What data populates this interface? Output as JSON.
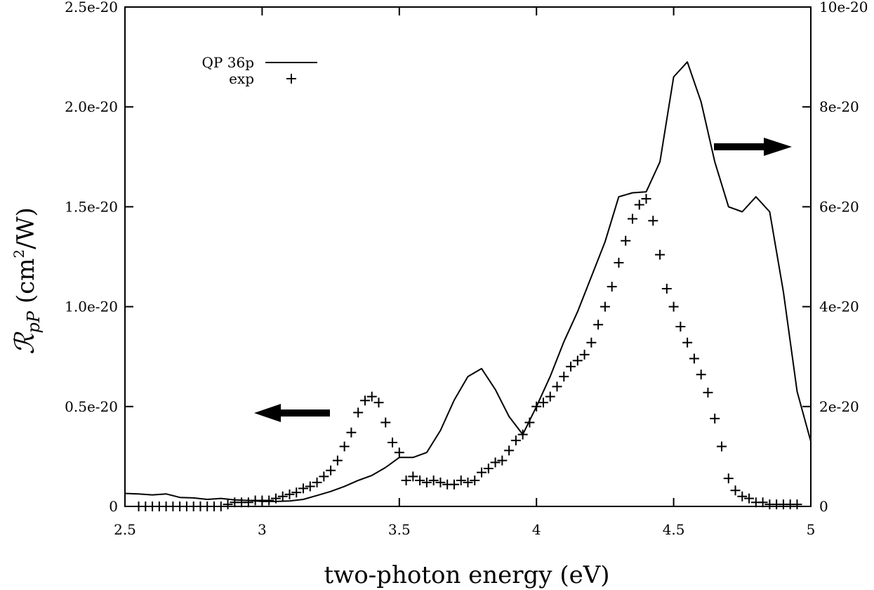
{
  "chart_data": {
    "type": "line",
    "xlabel": "two-photon energy (eV)",
    "ylabel": "ℛ",
    "ylabel_sub": "pP",
    "ylabel_unit_open": " (cm",
    "ylabel_unit_sup": "2",
    "ylabel_unit_close": "/W)",
    "xlim": [
      2.5,
      5.0
    ],
    "ylim_left": [
      0,
      2.5e-20
    ],
    "ylim_right": [
      0,
      1e-19
    ],
    "x_ticks": [
      2.5,
      3.0,
      3.5,
      4.0,
      4.5,
      5.0
    ],
    "x_tick_labels": [
      "2.5",
      "3",
      "3.5",
      "4",
      "4.5",
      "5"
    ],
    "y_left_ticks": [
      0,
      5e-21,
      1e-20,
      1.5e-20,
      2e-20,
      2.5e-20
    ],
    "y_left_tick_labels": [
      "0",
      "0.5e-20",
      "1.0e-20",
      "1.5e-20",
      "2.0e-20",
      "2.5e-20"
    ],
    "y_right_ticks": [
      0,
      2e-20,
      4e-20,
      6e-20,
      8e-20,
      1e-19
    ],
    "y_right_tick_labels": [
      "0",
      "2e-20",
      "4e-20",
      "6e-20",
      "8e-20",
      "10e-20"
    ],
    "grid": false,
    "legend_position": "top-left",
    "series": [
      {
        "name": "QP 36p",
        "style": "line",
        "axis": "right",
        "x": [
          2.5,
          2.55,
          2.6,
          2.65,
          2.7,
          2.75,
          2.8,
          2.85,
          2.9,
          2.95,
          3.0,
          3.05,
          3.1,
          3.15,
          3.2,
          3.25,
          3.3,
          3.35,
          3.4,
          3.45,
          3.5,
          3.55,
          3.6,
          3.65,
          3.7,
          3.75,
          3.8,
          3.85,
          3.9,
          3.95,
          4.0,
          4.05,
          4.1,
          4.15,
          4.2,
          4.25,
          4.3,
          4.35,
          4.4,
          4.45,
          4.5,
          4.55,
          4.6,
          4.65,
          4.7,
          4.75,
          4.8,
          4.85,
          4.9,
          4.95,
          5.0
        ],
        "y": [
          2.6e-21,
          2.5e-21,
          2.3e-21,
          2.5e-21,
          1.8e-21,
          1.7e-21,
          1.4e-21,
          1.6e-21,
          1.3e-21,
          1.2e-21,
          1e-21,
          1e-21,
          1.1e-21,
          1.4e-21,
          2.2e-21,
          3e-21,
          4e-21,
          5.2e-21,
          6.2e-21,
          7.8e-21,
          9.8e-21,
          9.8e-21,
          1.08e-20,
          1.52e-20,
          2.13e-20,
          2.6e-20,
          2.76e-20,
          2.34e-20,
          1.8e-20,
          1.44e-20,
          2e-20,
          2.6e-20,
          3.3e-20,
          3.9e-20,
          4.6e-20,
          5.3e-20,
          6.2e-20,
          6.28e-20,
          6.3e-20,
          6.9e-20,
          8.6e-20,
          8.9e-20,
          8.1e-20,
          6.9e-20,
          6e-20,
          5.9e-20,
          6.2e-20,
          5.9e-20,
          4.3e-20,
          2.3e-20,
          1.3e-20
        ]
      },
      {
        "name": "exp",
        "style": "plus",
        "axis": "left",
        "x": [
          2.55,
          2.575,
          2.6,
          2.625,
          2.65,
          2.675,
          2.7,
          2.725,
          2.75,
          2.775,
          2.8,
          2.825,
          2.85,
          2.875,
          2.9,
          2.925,
          2.95,
          2.975,
          3.0,
          3.025,
          3.05,
          3.075,
          3.1,
          3.125,
          3.15,
          3.175,
          3.2,
          3.225,
          3.25,
          3.275,
          3.3,
          3.325,
          3.35,
          3.375,
          3.4,
          3.425,
          3.45,
          3.475,
          3.5,
          3.525,
          3.55,
          3.575,
          3.6,
          3.625,
          3.65,
          3.675,
          3.7,
          3.725,
          3.75,
          3.775,
          3.8,
          3.825,
          3.85,
          3.875,
          3.9,
          3.925,
          3.95,
          3.975,
          4.0,
          4.025,
          4.05,
          4.075,
          4.1,
          4.125,
          4.15,
          4.175,
          4.2,
          4.225,
          4.25,
          4.275,
          4.3,
          4.325,
          4.35,
          4.375,
          4.4,
          4.425,
          4.45,
          4.475,
          4.5,
          4.525,
          4.55,
          4.575,
          4.6,
          4.625,
          4.65,
          4.675,
          4.7,
          4.725,
          4.75,
          4.775,
          4.8,
          4.825,
          4.85,
          4.875,
          4.9,
          4.925,
          4.95
        ],
        "y": [
          0.0,
          0.0,
          0.0,
          0.0,
          0.0,
          0.0,
          0.0,
          0.0,
          0.0,
          0.0,
          0.0,
          0.0,
          0.0,
          1e-22,
          2e-22,
          2e-22,
          2e-22,
          3e-22,
          3e-22,
          3e-22,
          4e-22,
          5e-22,
          6e-22,
          7e-22,
          9e-22,
          1e-21,
          1.2e-21,
          1.5e-21,
          1.8e-21,
          2.3e-21,
          3e-21,
          3.7e-21,
          4.7e-21,
          5.3e-21,
          5.5e-21,
          5.2e-21,
          4.2e-21,
          3.2e-21,
          2.7e-21,
          1.3e-21,
          1.5e-21,
          1.3e-21,
          1.2e-21,
          1.3e-21,
          1.2e-21,
          1.1e-21,
          1.1e-21,
          1.3e-21,
          1.2e-21,
          1.3e-21,
          1.7e-21,
          1.9e-21,
          2.2e-21,
          2.3e-21,
          2.8e-21,
          3.3e-21,
          3.6e-21,
          4.2e-21,
          5e-21,
          5.2e-21,
          5.5e-21,
          6e-21,
          6.5e-21,
          7e-21,
          7.3e-21,
          7.6e-21,
          8.2e-21,
          9.1e-21,
          1e-20,
          1.1e-20,
          1.22e-20,
          1.33e-20,
          1.44e-20,
          1.51e-20,
          1.54e-20,
          1.43e-20,
          1.26e-20,
          1.09e-20,
          1e-20,
          9e-21,
          8.2e-21,
          7.4e-21,
          6.6e-21,
          5.7e-21,
          4.4e-21,
          3e-21,
          1.4e-21,
          8e-22,
          5e-22,
          4e-22,
          2e-22,
          2e-22,
          1e-22,
          1e-22,
          1e-22,
          1e-22,
          1e-22
        ]
      }
    ],
    "annotations": [
      {
        "type": "arrow",
        "direction": "left",
        "meaning": "exp uses left axis"
      },
      {
        "type": "arrow",
        "direction": "right",
        "meaning": "QP 36p uses right axis"
      }
    ]
  }
}
